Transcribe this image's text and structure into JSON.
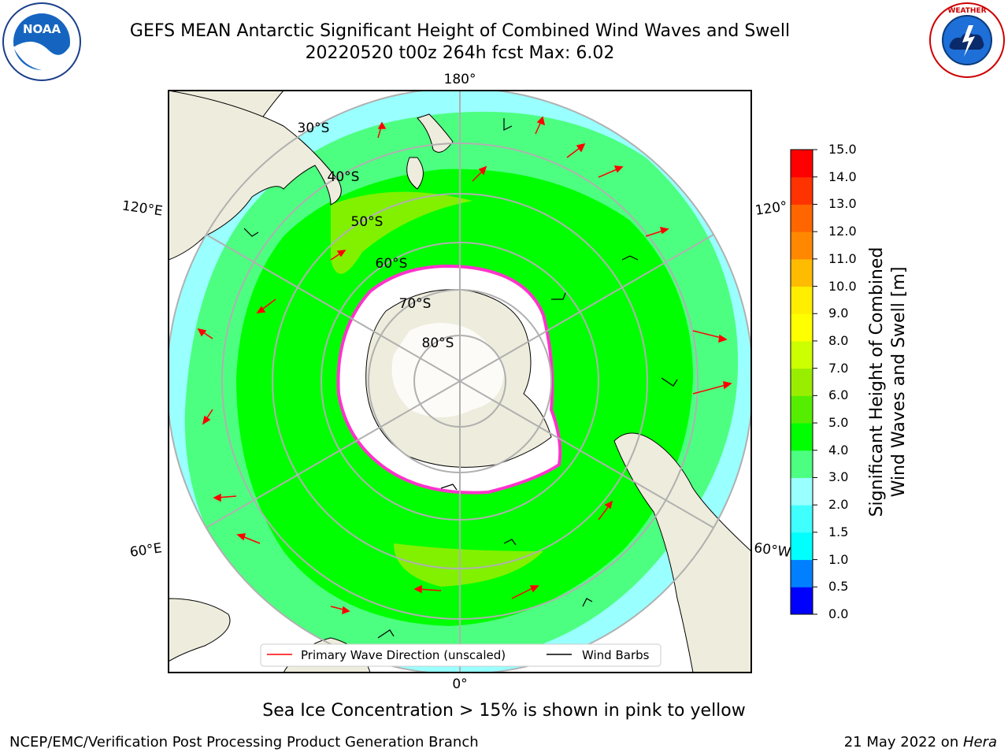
{
  "title": {
    "line1": "GEFS MEAN Antarctic Significant Height of Combined Wind Waves and Swell",
    "line2": "20220520 t00z 264h fcst   Max: 6.02"
  },
  "logos": {
    "left": {
      "name": "NOAA",
      "ring_text": "NATIONAL OCEANIC AND ATMOSPHERIC ADMINISTRATION · U.S. DEPARTMENT OF COMMERCE"
    },
    "right": {
      "name": "NATIONAL WEATHER SERVICE"
    }
  },
  "map": {
    "projection": "south-polar-stereographic",
    "longitude_labels": {
      "top": "180°",
      "bottom": "0°",
      "left_upper": "120°E",
      "left_lower": "60°E",
      "right_upper": "120°",
      "right_lower": "60°W"
    },
    "latitude_labels": [
      "30°S",
      "40°S",
      "50°S",
      "60°S",
      "70°S",
      "80°S"
    ],
    "legend": {
      "wave": "Primary Wave Direction (unscaled)",
      "wind": "Wind Barbs"
    },
    "colors": {
      "land": "#eeecdc",
      "ice": "#ffffff",
      "ice_edge": "#ff33cc",
      "arrow": "#ff0000",
      "barb": "#000000"
    }
  },
  "colorbar": {
    "title_line1": "Significant Height of Combined",
    "title_line2": "Wind Waves and Swell [m]",
    "ticks": [
      "0.0",
      "0.5",
      "1.0",
      "1.5",
      "2.0",
      "3.0",
      "4.0",
      "5.0",
      "6.0",
      "7.0",
      "8.0",
      "9.0",
      "10.0",
      "11.0",
      "12.0",
      "13.0",
      "14.0",
      "15.0"
    ],
    "colors": [
      "#0000ff",
      "#0080ff",
      "#00ffff",
      "#40ffff",
      "#99ffff",
      "#4dff80",
      "#00ff00",
      "#55ee00",
      "#99ee00",
      "#ccff00",
      "#ffff00",
      "#ffee00",
      "#ffbb00",
      "#ff8800",
      "#ff6600",
      "#ff3300",
      "#ff0000"
    ]
  },
  "bottom_note": "Sea Ice Concentration > 15% is shown in pink to yellow",
  "footer": {
    "left": "NCEP/EMC/Verification Post Processing Product Generation Branch",
    "right_date": "21 May 2022 on ",
    "right_host": "Hera"
  }
}
